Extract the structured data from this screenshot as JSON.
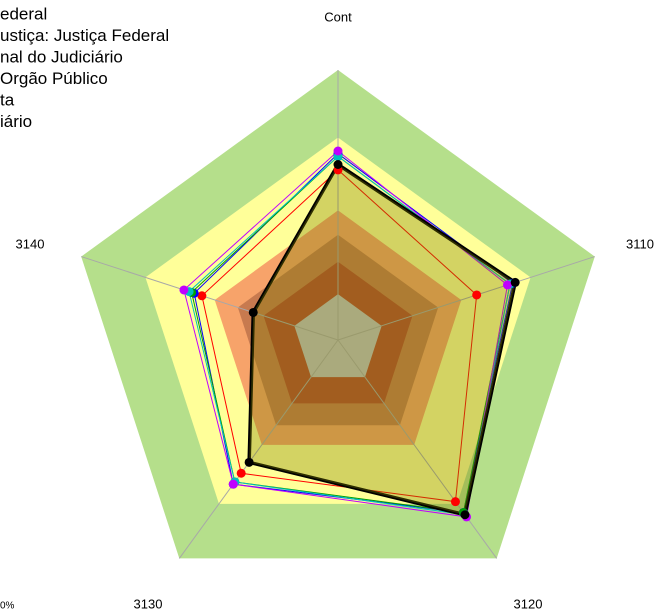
{
  "chart_data": {
    "type": "radar",
    "categories": [
      "Cont",
      "3110",
      "3120",
      "3130",
      "3140"
    ],
    "rlim": [
      0,
      100
    ],
    "bands": {
      "values": [
        100,
        75,
        48,
        39,
        29,
        17
      ],
      "colors": [
        "#b5df8b",
        "#ffff99",
        "#f7a36a",
        "#c77a4f",
        "#b44a30",
        "#c0c0c0"
      ]
    },
    "series": [
      {
        "name": "ederal",
        "color": "#ff0000",
        "values": [
          63,
          54,
          74,
          61,
          53
        ]
      },
      {
        "name": "ustiça: Justiça Federal",
        "color": "#0000ff",
        "values": [
          69,
          68,
          79,
          66,
          56
        ]
      },
      {
        "name": "nal do Judiciário",
        "color": "#00a000",
        "values": [
          68,
          67,
          79,
          65,
          57
        ]
      },
      {
        "name": "Orgão Público",
        "color": "#00c0c0",
        "values": [
          68,
          67,
          80,
          65,
          58
        ]
      },
      {
        "name": "ta",
        "color": "#c000ff",
        "values": [
          70,
          66,
          81,
          66,
          60
        ]
      },
      {
        "name": "iário",
        "color": "#000000",
        "values": [
          65,
          69,
          80,
          56,
          33
        ]
      }
    ],
    "annotation": "0%"
  }
}
